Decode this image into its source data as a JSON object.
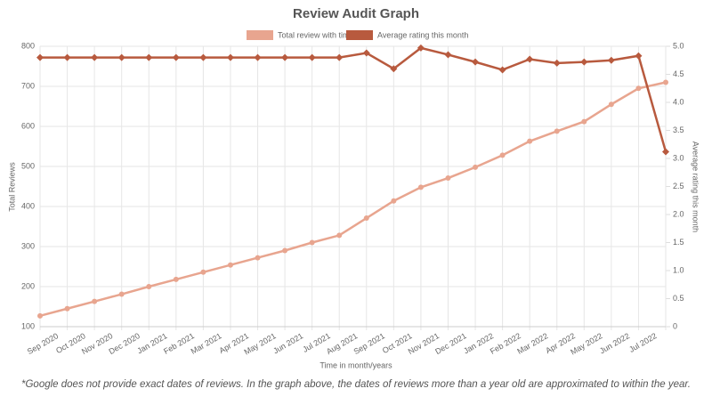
{
  "chart_data": {
    "type": "line",
    "title": "Review Audit Graph",
    "x_label": "Time in month/years",
    "y_label": "Total Reviews",
    "y2_label": "Average rating this month",
    "footnote": "*Google does not provide exact dates of reviews. In the graph above, the dates of reviews more than a year old are approximated to within the year.",
    "categories": [
      "Sep 2020",
      "Oct 2020",
      "Nov 2020",
      "Dec 2020",
      "Jan 2021",
      "Feb 2021",
      "Mar 2021",
      "Apr 2021",
      "May 2021",
      "Jun 2021",
      "Jul 2021",
      "Aug 2021",
      "Sep 2021",
      "Oct 2021",
      "Nov 2021",
      "Dec 2021",
      "Jan 2022",
      "Feb 2022",
      "Mar 2022",
      "Apr 2022",
      "May 2022",
      "Jun 2022",
      "Jul 2022",
      null
    ],
    "series": [
      {
        "name": "Total review with time",
        "color": "#e8a58f",
        "values": [
          127,
          145,
          163,
          181,
          200,
          218,
          236,
          254,
          272,
          290,
          310,
          328,
          371,
          414,
          448,
          471,
          498,
          528,
          563,
          588,
          612,
          655,
          695,
          710
        ]
      },
      {
        "name": "Average rating this month",
        "color": "#b85a3e",
        "axis": "y2",
        "values": [
          4.8,
          4.8,
          4.8,
          4.8,
          4.8,
          4.8,
          4.8,
          4.8,
          4.8,
          4.8,
          4.8,
          4.8,
          4.88,
          4.6,
          4.97,
          4.85,
          4.72,
          4.58,
          4.77,
          4.7,
          4.72,
          4.75,
          4.83,
          3.12
        ]
      }
    ],
    "ylim": [
      100,
      800
    ],
    "yticks": [
      100,
      200,
      300,
      400,
      500,
      600,
      700,
      800
    ],
    "y2lim": [
      0,
      5
    ],
    "y2ticks": [
      0,
      0.5,
      {
        "value": 1,
        "label": "1.0"
      },
      1.5,
      {
        "value": 2,
        "label": "2.0"
      },
      2.5,
      {
        "value": 3,
        "label": "3.0"
      },
      3.5,
      {
        "value": 4,
        "label": "4.0"
      },
      4.5,
      {
        "value": 5,
        "label": "5.0"
      }
    ],
    "grid": true,
    "legend": "top"
  }
}
